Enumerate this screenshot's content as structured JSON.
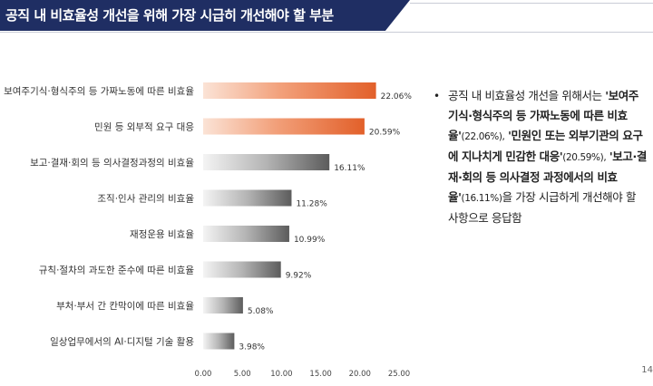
{
  "header": {
    "title": "공직 내 비효율성 개선을 위해 가장 시급히 개선해야 할 부분"
  },
  "colors": {
    "header_bg": "#1f2e63",
    "bar_top_orange": "#e8703a",
    "bar_gray_dark": "#6e6e6e",
    "bar_gray_light": "#b8b8b8"
  },
  "chart_data": {
    "type": "bar",
    "orientation": "horizontal",
    "title": "",
    "xlabel": "",
    "ylabel": "",
    "xlim": [
      0,
      25
    ],
    "x_ticks": [
      "0.00",
      "5.00",
      "10.00",
      "15.00",
      "20.00",
      "25.00"
    ],
    "categories": [
      "보여주기식·형식주의 등 가짜노동에 따른 비효율",
      "민원 등 외부적 요구 대응",
      "보고·결재·회의 등 의사결정과정의 비효율",
      "조직·인사 관리의 비효율",
      "재정운용 비효율",
      "규칙·절차의 과도한 준수에 따른 비효율",
      "부처·부서 간 칸막이에 따른 비효율",
      "일상업무에서의 AI·디지털 기술 활용"
    ],
    "values": [
      22.06,
      20.59,
      16.11,
      11.28,
      10.99,
      9.92,
      5.08,
      3.98
    ],
    "value_labels": [
      "22.06%",
      "20.59%",
      "16.11%",
      "11.28%",
      "10.99%",
      "9.92%",
      "5.08%",
      "3.98%"
    ],
    "highlighted": [
      true,
      true,
      false,
      false,
      false,
      false,
      false,
      false
    ],
    "grid": false,
    "legend": "none"
  },
  "summary": {
    "bullet": "•",
    "intro": "공직 내 비효율성 개선을 위해서는",
    "item1": "'보여주기식·형식주의 등 가짜노동에 따른 비효율'",
    "item1_pct": "(22.06%),",
    "item2": "'민원인 또는 외부기관의 요구에 지나치게 민감한 대응'",
    "item2_pct": "(20.59%),",
    "item3": "'보고·결재·회의 등 의사결정 과정에서의 비효율'",
    "item3_pct": "(16.11%)",
    "outro": "을 가장 시급하게 개선해야 할 사항으로 응답함"
  },
  "page_number": "14"
}
